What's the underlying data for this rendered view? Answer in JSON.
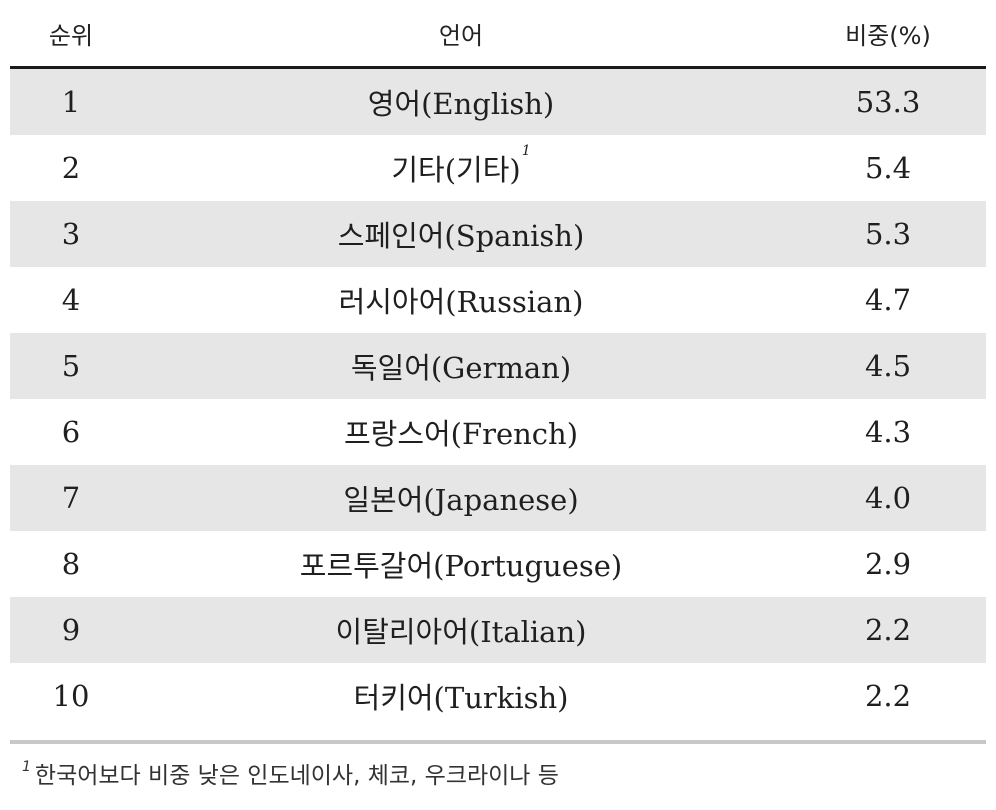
{
  "header": {
    "rank": "순위",
    "language": "언어",
    "share": "비중(%)"
  },
  "rows": [
    {
      "rank": "1",
      "language": "영어(English)",
      "share": "53.3"
    },
    {
      "rank": "2",
      "language": "기타(기타)",
      "note": "1",
      "share": "5.4"
    },
    {
      "rank": "3",
      "language": "스페인어(Spanish)",
      "share": "5.3"
    },
    {
      "rank": "4",
      "language": "러시아어(Russian)",
      "share": "4.7"
    },
    {
      "rank": "5",
      "language": "독일어(German)",
      "share": "4.5"
    },
    {
      "rank": "6",
      "language": "프랑스어(French)",
      "share": "4.3"
    },
    {
      "rank": "7",
      "language": "일본어(Japanese)",
      "share": "4.0"
    },
    {
      "rank": "8",
      "language": "포르투갈어(Portuguese)",
      "share": "2.9"
    },
    {
      "rank": "9",
      "language": "이탈리아어(Italian)",
      "share": "2.2"
    },
    {
      "rank": "10",
      "language": "터키어(Turkish)",
      "share": "2.2"
    }
  ],
  "footnote": {
    "mark": "1",
    "text": "한국어보다 비중 낮은 인도네이사, 체코, 우크라이나 등"
  },
  "colors": {
    "row_alt_bg": "#e6e6e6",
    "header_rule": "#1a1a1a",
    "bottom_rule": "#c8c8c8"
  }
}
